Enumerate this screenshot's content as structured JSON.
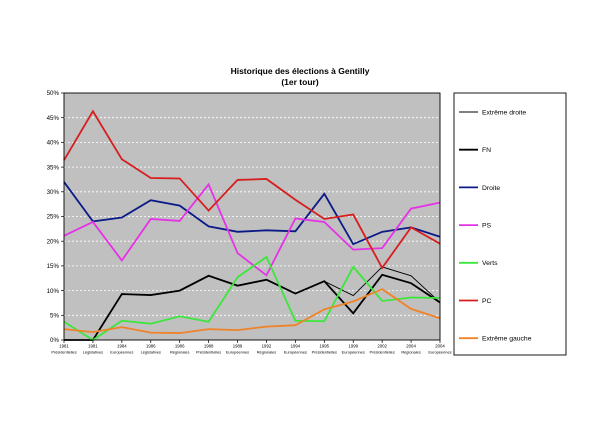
{
  "chart_data": {
    "type": "line",
    "title": "Historique des élections à Gentilly",
    "subtitle": "(1er tour)",
    "ylim": [
      0,
      50
    ],
    "y_ticks": [
      "0%",
      "5%",
      "10%",
      "15%",
      "20%",
      "25%",
      "30%",
      "35%",
      "40%",
      "45%",
      "50%"
    ],
    "y_unit": "%",
    "grid": true,
    "legend_position": "right",
    "background_color": "#c0c0c0",
    "categories": [
      {
        "year": "1981",
        "type": "Présidentielles"
      },
      {
        "year": "1981",
        "type": "Législatives"
      },
      {
        "year": "1984",
        "type": "Européennes"
      },
      {
        "year": "1986",
        "type": "Législatives"
      },
      {
        "year": "1986",
        "type": "Régionales"
      },
      {
        "year": "1988",
        "type": "Présidentielles"
      },
      {
        "year": "1989",
        "type": "Européennes"
      },
      {
        "year": "1992",
        "type": "Régionales"
      },
      {
        "year": "1994",
        "type": "Européennes"
      },
      {
        "year": "1995",
        "type": "Présidentielles"
      },
      {
        "year": "1999",
        "type": "Européennes"
      },
      {
        "year": "2002",
        "type": "Présidentielles"
      },
      {
        "year": "2004",
        "type": "Régionales"
      },
      {
        "year": "2004",
        "type": "Européennes"
      }
    ],
    "series": [
      {
        "name": "Extrême droite",
        "color": "#000000",
        "width": 0.9,
        "values": [
          0,
          0,
          9.3,
          9.1,
          10.0,
          13.0,
          11.0,
          12.2,
          9.4,
          11.9,
          9.0,
          14.8,
          13.0,
          7.6
        ]
      },
      {
        "name": "FN",
        "color": "#000000",
        "width": 1.8,
        "values": [
          0,
          0,
          9.3,
          9.1,
          10.0,
          13.0,
          11.0,
          12.2,
          9.4,
          11.9,
          5.4,
          13.2,
          11.5,
          7.6
        ]
      },
      {
        "name": "Droite",
        "color": "#0b1a86",
        "width": 1.8,
        "values": [
          32.0,
          24.0,
          24.8,
          28.3,
          27.2,
          23.0,
          21.9,
          22.2,
          22.0,
          29.6,
          19.4,
          21.9,
          22.8,
          20.9
        ]
      },
      {
        "name": "PS",
        "color": "#e632e6",
        "width": 1.8,
        "values": [
          21.1,
          23.9,
          16.1,
          24.5,
          24.1,
          31.5,
          17.6,
          13.1,
          24.6,
          23.9,
          18.3,
          18.6,
          26.6,
          27.8
        ]
      },
      {
        "name": "Verts",
        "color": "#3ce63c",
        "width": 1.8,
        "values": [
          3.7,
          0,
          3.9,
          3.3,
          4.8,
          3.7,
          12.7,
          16.8,
          3.9,
          3.8,
          14.8,
          7.9,
          8.6,
          8.5
        ]
      },
      {
        "name": "PC",
        "color": "#d71e1e",
        "width": 1.8,
        "values": [
          36.4,
          46.3,
          36.6,
          32.8,
          32.7,
          26.2,
          32.4,
          32.6,
          28.4,
          24.5,
          25.4,
          14.6,
          22.8,
          19.5
        ]
      },
      {
        "name": "Extrême gauche",
        "color": "#f08228",
        "width": 1.8,
        "values": [
          2.2,
          1.6,
          2.6,
          1.5,
          1.4,
          2.2,
          2.0,
          2.7,
          3.0,
          6.2,
          7.8,
          10.3,
          6.3,
          4.4
        ]
      }
    ]
  }
}
